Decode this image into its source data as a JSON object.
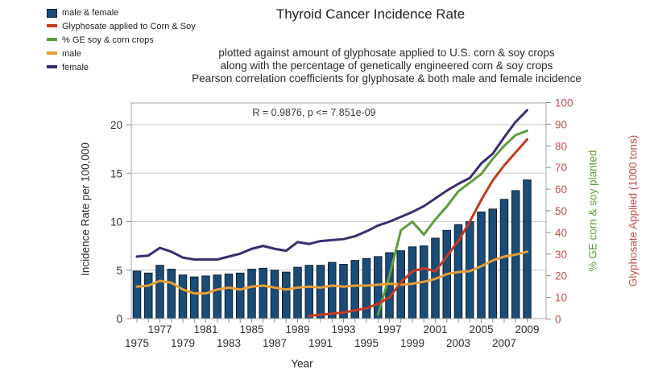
{
  "title": "Thyroid Cancer Incidence Rate",
  "subtitle_lines": [
    "plotted against amount of glyphosate applied to U.S. corn & soy crops",
    "along with the percentage of genetically engineered corn & soy crops",
    "Pearson correlation coefficients for glyphosate & both male and female incidence"
  ],
  "annotation": "R = 0.9876, p <= 7.851e-09",
  "legend": {
    "items": [
      {
        "label": "male & female",
        "swatch": "square",
        "color": "#1a4c78"
      },
      {
        "label": "Glyphosate applied to Corn & Soy",
        "swatch": "line",
        "color": "#c53b22"
      },
      {
        "label": "% GE soy & corn crops",
        "swatch": "line",
        "color": "#5f9c3c"
      },
      {
        "label": "male",
        "swatch": "line",
        "color": "#e69f35"
      },
      {
        "label": "female",
        "swatch": "line",
        "color": "#3b2d6e"
      }
    ]
  },
  "axes": {
    "left": {
      "title": "Incidence Rate per 100,000",
      "ticks": [
        0,
        5,
        10,
        15,
        20
      ],
      "text_color": "#2e2e2e"
    },
    "right": {
      "ticks": [
        0,
        10,
        20,
        30,
        40,
        50,
        60,
        70,
        80,
        90,
        100
      ],
      "text_color": "#c0504d",
      "green_title": "% GE corn & soy planted",
      "green_color": "#5f9c3c",
      "red_title": "Glyphosate Applied (1000 tons)",
      "red_color": "#c0504d"
    },
    "x": {
      "title": "Year",
      "labels": [
        {
          "year": "1975",
          "row": 2
        },
        {
          "year": "1977",
          "row": 1
        },
        {
          "year": "1979",
          "row": 2
        },
        {
          "year": "1981",
          "row": 1
        },
        {
          "year": "1983",
          "row": 2
        },
        {
          "year": "1985",
          "row": 1
        },
        {
          "year": "1987",
          "row": 2
        },
        {
          "year": "1989",
          "row": 1
        },
        {
          "year": "1991",
          "row": 2
        },
        {
          "year": "1993",
          "row": 1
        },
        {
          "year": "1995",
          "row": 2
        },
        {
          "year": "1997",
          "row": 1
        },
        {
          "year": "1999",
          "row": 2
        },
        {
          "year": "2001",
          "row": 1
        },
        {
          "year": "2003",
          "row": 2
        },
        {
          "year": "2005",
          "row": 1
        },
        {
          "year": "2007",
          "row": 2
        },
        {
          "year": "2009",
          "row": 1
        }
      ]
    }
  },
  "colors": {
    "bar": "#1a4c78",
    "bar_border": "#0e2132",
    "female": "#3b2d6e",
    "male": "#e69f35",
    "ge": "#5f9c3c",
    "glyphosate": "#c53b22",
    "grid": "#c9c9c9",
    "frame": "#a8a8a8",
    "tick": "#8d8d8d"
  },
  "chart_data": {
    "type": "bar",
    "subtype": "combo bar+line, dual y-axis",
    "title": "Thyroid Cancer Incidence Rate",
    "xlabel": "Year",
    "ylabel_left": "Incidence Rate per 100,000",
    "ylabel_right_1": "% GE corn & soy planted",
    "ylabel_right_2": "Glyphosate Applied (1000 tons)",
    "left_ylim": [
      0,
      22.2
    ],
    "right_ylim": [
      0,
      100
    ],
    "grid": "horizontal only",
    "legend_position": "top-left",
    "x": [
      1975,
      1976,
      1977,
      1978,
      1979,
      1980,
      1981,
      1982,
      1983,
      1984,
      1985,
      1986,
      1987,
      1988,
      1989,
      1990,
      1991,
      1992,
      1993,
      1994,
      1995,
      1996,
      1997,
      1998,
      1999,
      2000,
      2001,
      2002,
      2003,
      2004,
      2005,
      2006,
      2007,
      2008,
      2009
    ],
    "series": [
      {
        "name": "male & female",
        "type": "bar",
        "axis": "left",
        "color": "#1a4c78",
        "values": [
          4.9,
          4.7,
          5.5,
          5.1,
          4.5,
          4.3,
          4.4,
          4.5,
          4.6,
          4.7,
          5.1,
          5.2,
          5.0,
          4.8,
          5.3,
          5.5,
          5.5,
          5.8,
          5.6,
          6.0,
          6.2,
          6.4,
          6.8,
          7.0,
          7.4,
          7.5,
          8.3,
          9.1,
          9.7,
          10.0,
          11.0,
          11.3,
          12.3,
          13.2,
          14.3
        ]
      },
      {
        "name": "female",
        "type": "line",
        "axis": "left",
        "color": "#3b2d6e",
        "values": [
          6.4,
          6.5,
          7.3,
          6.9,
          6.3,
          6.1,
          6.1,
          6.1,
          6.4,
          6.7,
          7.2,
          7.5,
          7.2,
          7.0,
          7.9,
          7.7,
          8.0,
          8.1,
          8.2,
          8.5,
          9.0,
          9.6,
          10.0,
          10.5,
          11.0,
          11.6,
          12.4,
          13.2,
          13.9,
          14.5,
          16.0,
          17.0,
          18.7,
          20.3,
          21.5
        ]
      },
      {
        "name": "male",
        "type": "line",
        "axis": "left",
        "color": "#e69f35",
        "values": [
          3.3,
          3.4,
          3.9,
          3.7,
          3.0,
          2.6,
          2.6,
          3.0,
          3.2,
          3.0,
          3.3,
          3.4,
          3.2,
          3.0,
          3.2,
          3.3,
          3.2,
          3.4,
          3.3,
          3.4,
          3.4,
          3.5,
          3.6,
          3.5,
          3.6,
          3.8,
          4.1,
          4.6,
          4.8,
          4.9,
          5.4,
          6.0,
          6.4,
          6.6,
          6.9
        ]
      },
      {
        "name": "% GE soy & corn crops",
        "type": "line",
        "axis": "right",
        "color": "#5f9c3c",
        "values": [
          null,
          null,
          null,
          null,
          null,
          null,
          null,
          null,
          null,
          null,
          null,
          null,
          null,
          null,
          null,
          null,
          null,
          null,
          null,
          null,
          null,
          2,
          20,
          41,
          45,
          39,
          46,
          52,
          59,
          63,
          67,
          74,
          80,
          85,
          87
        ]
      },
      {
        "name": "Glyphosate applied to Corn & Soy",
        "type": "line",
        "axis": "right",
        "color": "#c53b22",
        "values": [
          null,
          null,
          null,
          null,
          null,
          null,
          null,
          null,
          null,
          null,
          null,
          null,
          null,
          null,
          null,
          1.5,
          2,
          2.5,
          3,
          4,
          5,
          7,
          10,
          17,
          22,
          23.5,
          22,
          29,
          36,
          45,
          55,
          64,
          71,
          77,
          83
        ]
      }
    ],
    "annotation": "R = 0.9876, p <= 7.851e-09"
  }
}
